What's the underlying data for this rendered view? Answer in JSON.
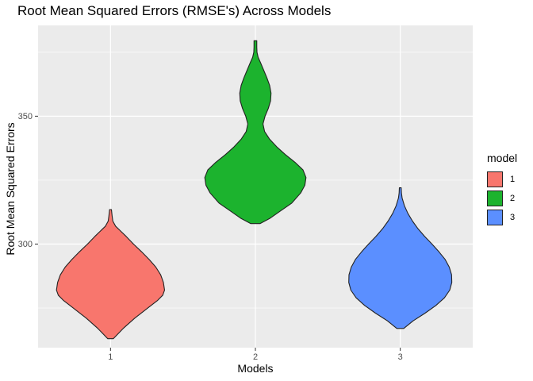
{
  "chart_data": {
    "type": "violin",
    "title": "Root Mean Squared Errors (RMSE's) Across Models",
    "xlabel": "Models",
    "ylabel": "Root Mean Squared Errors",
    "categories": [
      "1",
      "2",
      "3"
    ],
    "ylim": [
      259.5,
      385.5
    ],
    "yticks": [
      300,
      350
    ],
    "grid": true,
    "legend": {
      "title": "model",
      "position": "right",
      "entries": [
        {
          "label": "1",
          "color": "#F8766D"
        },
        {
          "label": "2",
          "color": "#1CB32E"
        },
        {
          "label": "3",
          "color": "#5B8FFF"
        }
      ]
    },
    "series": [
      {
        "name": "1",
        "color": "#F8766D",
        "min": 263,
        "max": 313.5,
        "profile": [
          [
            263,
            0.12
          ],
          [
            267,
            0.55
          ],
          [
            271,
            1.05
          ],
          [
            275,
            1.62
          ],
          [
            278,
            2.05
          ],
          [
            280,
            2.27
          ],
          [
            282,
            2.35
          ],
          [
            285,
            2.3
          ],
          [
            288,
            2.18
          ],
          [
            291,
            1.97
          ],
          [
            294,
            1.68
          ],
          [
            297,
            1.35
          ],
          [
            300,
            1.0
          ],
          [
            303,
            0.68
          ],
          [
            305,
            0.45
          ],
          [
            307,
            0.22
          ],
          [
            309,
            0.1
          ],
          [
            311,
            0.07
          ],
          [
            313.5,
            0.04
          ]
        ]
      },
      {
        "name": "2",
        "color": "#1CB32E",
        "min": 308,
        "max": 379.5,
        "profile": [
          [
            308,
            0.2
          ],
          [
            310,
            0.62
          ],
          [
            313,
            1.1
          ],
          [
            316,
            1.58
          ],
          [
            320,
            1.97
          ],
          [
            323,
            2.15
          ],
          [
            326,
            2.2
          ],
          [
            329,
            2.07
          ],
          [
            332,
            1.72
          ],
          [
            335,
            1.3
          ],
          [
            338,
            0.93
          ],
          [
            341,
            0.62
          ],
          [
            344,
            0.4
          ],
          [
            347,
            0.33
          ],
          [
            350,
            0.42
          ],
          [
            353,
            0.56
          ],
          [
            356,
            0.66
          ],
          [
            359,
            0.68
          ],
          [
            362,
            0.62
          ],
          [
            365,
            0.5
          ],
          [
            368,
            0.36
          ],
          [
            371,
            0.22
          ],
          [
            373,
            0.12
          ],
          [
            375,
            0.07
          ],
          [
            377,
            0.06
          ],
          [
            379.5,
            0.06
          ]
        ]
      },
      {
        "name": "3",
        "color": "#5B8FFF",
        "min": 267,
        "max": 322,
        "profile": [
          [
            267,
            0.15
          ],
          [
            270,
            0.56
          ],
          [
            273,
            1.08
          ],
          [
            276,
            1.55
          ],
          [
            279,
            1.92
          ],
          [
            282,
            2.15
          ],
          [
            285,
            2.24
          ],
          [
            288,
            2.23
          ],
          [
            291,
            2.13
          ],
          [
            294,
            1.95
          ],
          [
            297,
            1.68
          ],
          [
            300,
            1.38
          ],
          [
            303,
            1.06
          ],
          [
            306,
            0.77
          ],
          [
            309,
            0.53
          ],
          [
            312,
            0.33
          ],
          [
            315,
            0.18
          ],
          [
            318,
            0.08
          ],
          [
            320,
            0.05
          ],
          [
            322,
            0.04
          ]
        ]
      }
    ]
  }
}
